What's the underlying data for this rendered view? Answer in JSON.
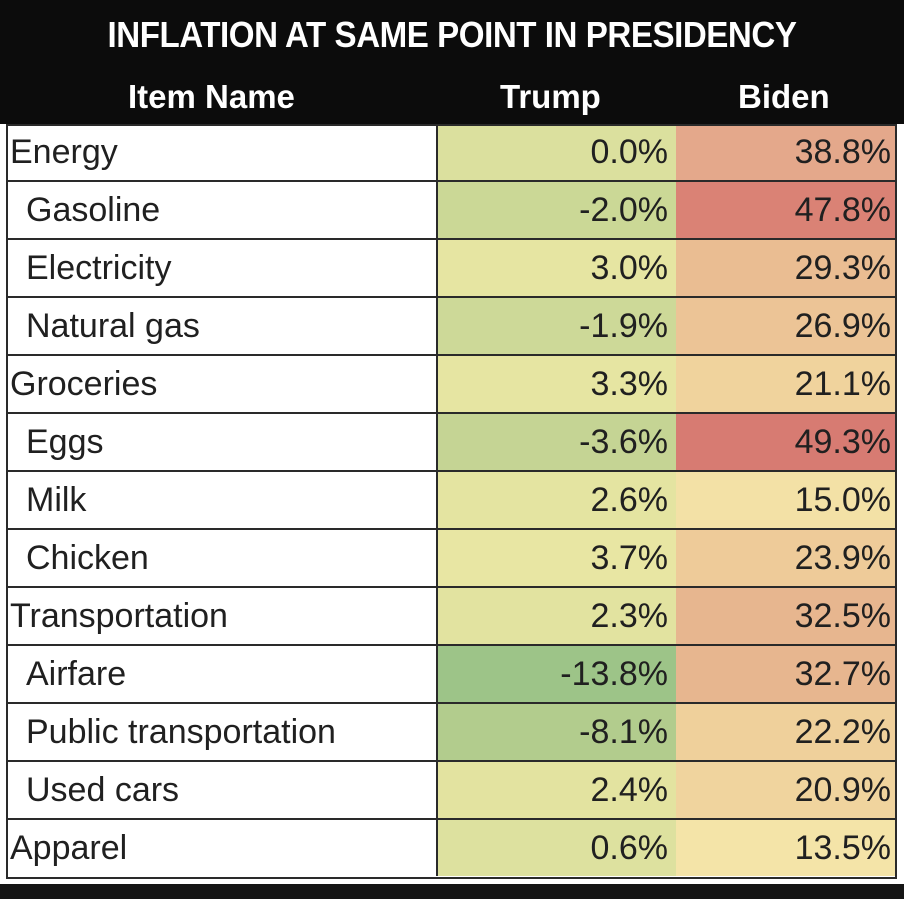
{
  "chart_data": {
    "type": "table",
    "title": "INFLATION AT SAME POINT IN PRESIDENCY",
    "columns": [
      "Item Name",
      "Trump",
      "Biden"
    ],
    "rows": [
      {
        "name": "Energy",
        "level": 0,
        "trump": "0.0%",
        "biden": "38.8%",
        "trump_value": 0.0,
        "biden_value": 38.8,
        "trump_color": "#dbe09e",
        "biden_color": "#e4a88b"
      },
      {
        "name": "Gasoline",
        "level": 1,
        "trump": "-2.0%",
        "biden": "47.8%",
        "trump_value": -2.0,
        "biden_value": 47.8,
        "trump_color": "#cbd896",
        "biden_color": "#da8275"
      },
      {
        "name": "Electricity",
        "level": 1,
        "trump": "3.0%",
        "biden": "29.3%",
        "trump_value": 3.0,
        "biden_value": 29.3,
        "trump_color": "#e6e5a2",
        "biden_color": "#eabd92"
      },
      {
        "name": "Natural gas",
        "level": 1,
        "trump": "-1.9%",
        "biden": "26.9%",
        "trump_value": -1.9,
        "biden_value": 26.9,
        "trump_color": "#cdd998",
        "biden_color": "#ecc496"
      },
      {
        "name": "Groceries",
        "level": 0,
        "trump": "3.3%",
        "biden": "21.1%",
        "trump_value": 3.3,
        "biden_value": 21.1,
        "trump_color": "#e6e5a2",
        "biden_color": "#f0d39d"
      },
      {
        "name": "Eggs",
        "level": 1,
        "trump": "-3.6%",
        "biden": "49.3%",
        "trump_value": -3.6,
        "biden_value": 49.3,
        "trump_color": "#c5d494",
        "biden_color": "#d77b72"
      },
      {
        "name": "Milk",
        "level": 1,
        "trump": "2.6%",
        "biden": "15.0%",
        "trump_value": 2.6,
        "biden_value": 15.0,
        "trump_color": "#e4e4a1",
        "biden_color": "#f3e1a6"
      },
      {
        "name": "Chicken",
        "level": 1,
        "trump": "3.7%",
        "biden": "23.9%",
        "trump_value": 3.7,
        "biden_value": 23.9,
        "trump_color": "#e8e6a3",
        "biden_color": "#eecb99"
      },
      {
        "name": "Transportation",
        "level": 0,
        "trump": "2.3%",
        "biden": "32.5%",
        "trump_value": 2.3,
        "biden_value": 32.5,
        "trump_color": "#e2e3a0",
        "biden_color": "#e7b68f"
      },
      {
        "name": "Airfare",
        "level": 1,
        "trump": "-13.8%",
        "biden": "32.7%",
        "trump_value": -13.8,
        "biden_value": 32.7,
        "trump_color": "#9dc488",
        "biden_color": "#e7b68f"
      },
      {
        "name": "Public transportation",
        "level": 1,
        "trump": "-8.1%",
        "biden": "22.2%",
        "trump_value": -8.1,
        "biden_value": 22.2,
        "trump_color": "#b2cc8d",
        "biden_color": "#efd09b"
      },
      {
        "name": "Used cars",
        "level": 1,
        "trump": "2.4%",
        "biden": "20.9%",
        "trump_value": 2.4,
        "biden_value": 20.9,
        "trump_color": "#e3e3a0",
        "biden_color": "#f0d49e"
      },
      {
        "name": "Apparel",
        "level": 0,
        "trump": "0.6%",
        "biden": "13.5%",
        "trump_value": 0.6,
        "biden_value": 13.5,
        "trump_color": "#dde19f",
        "biden_color": "#f4e4a8"
      }
    ]
  }
}
